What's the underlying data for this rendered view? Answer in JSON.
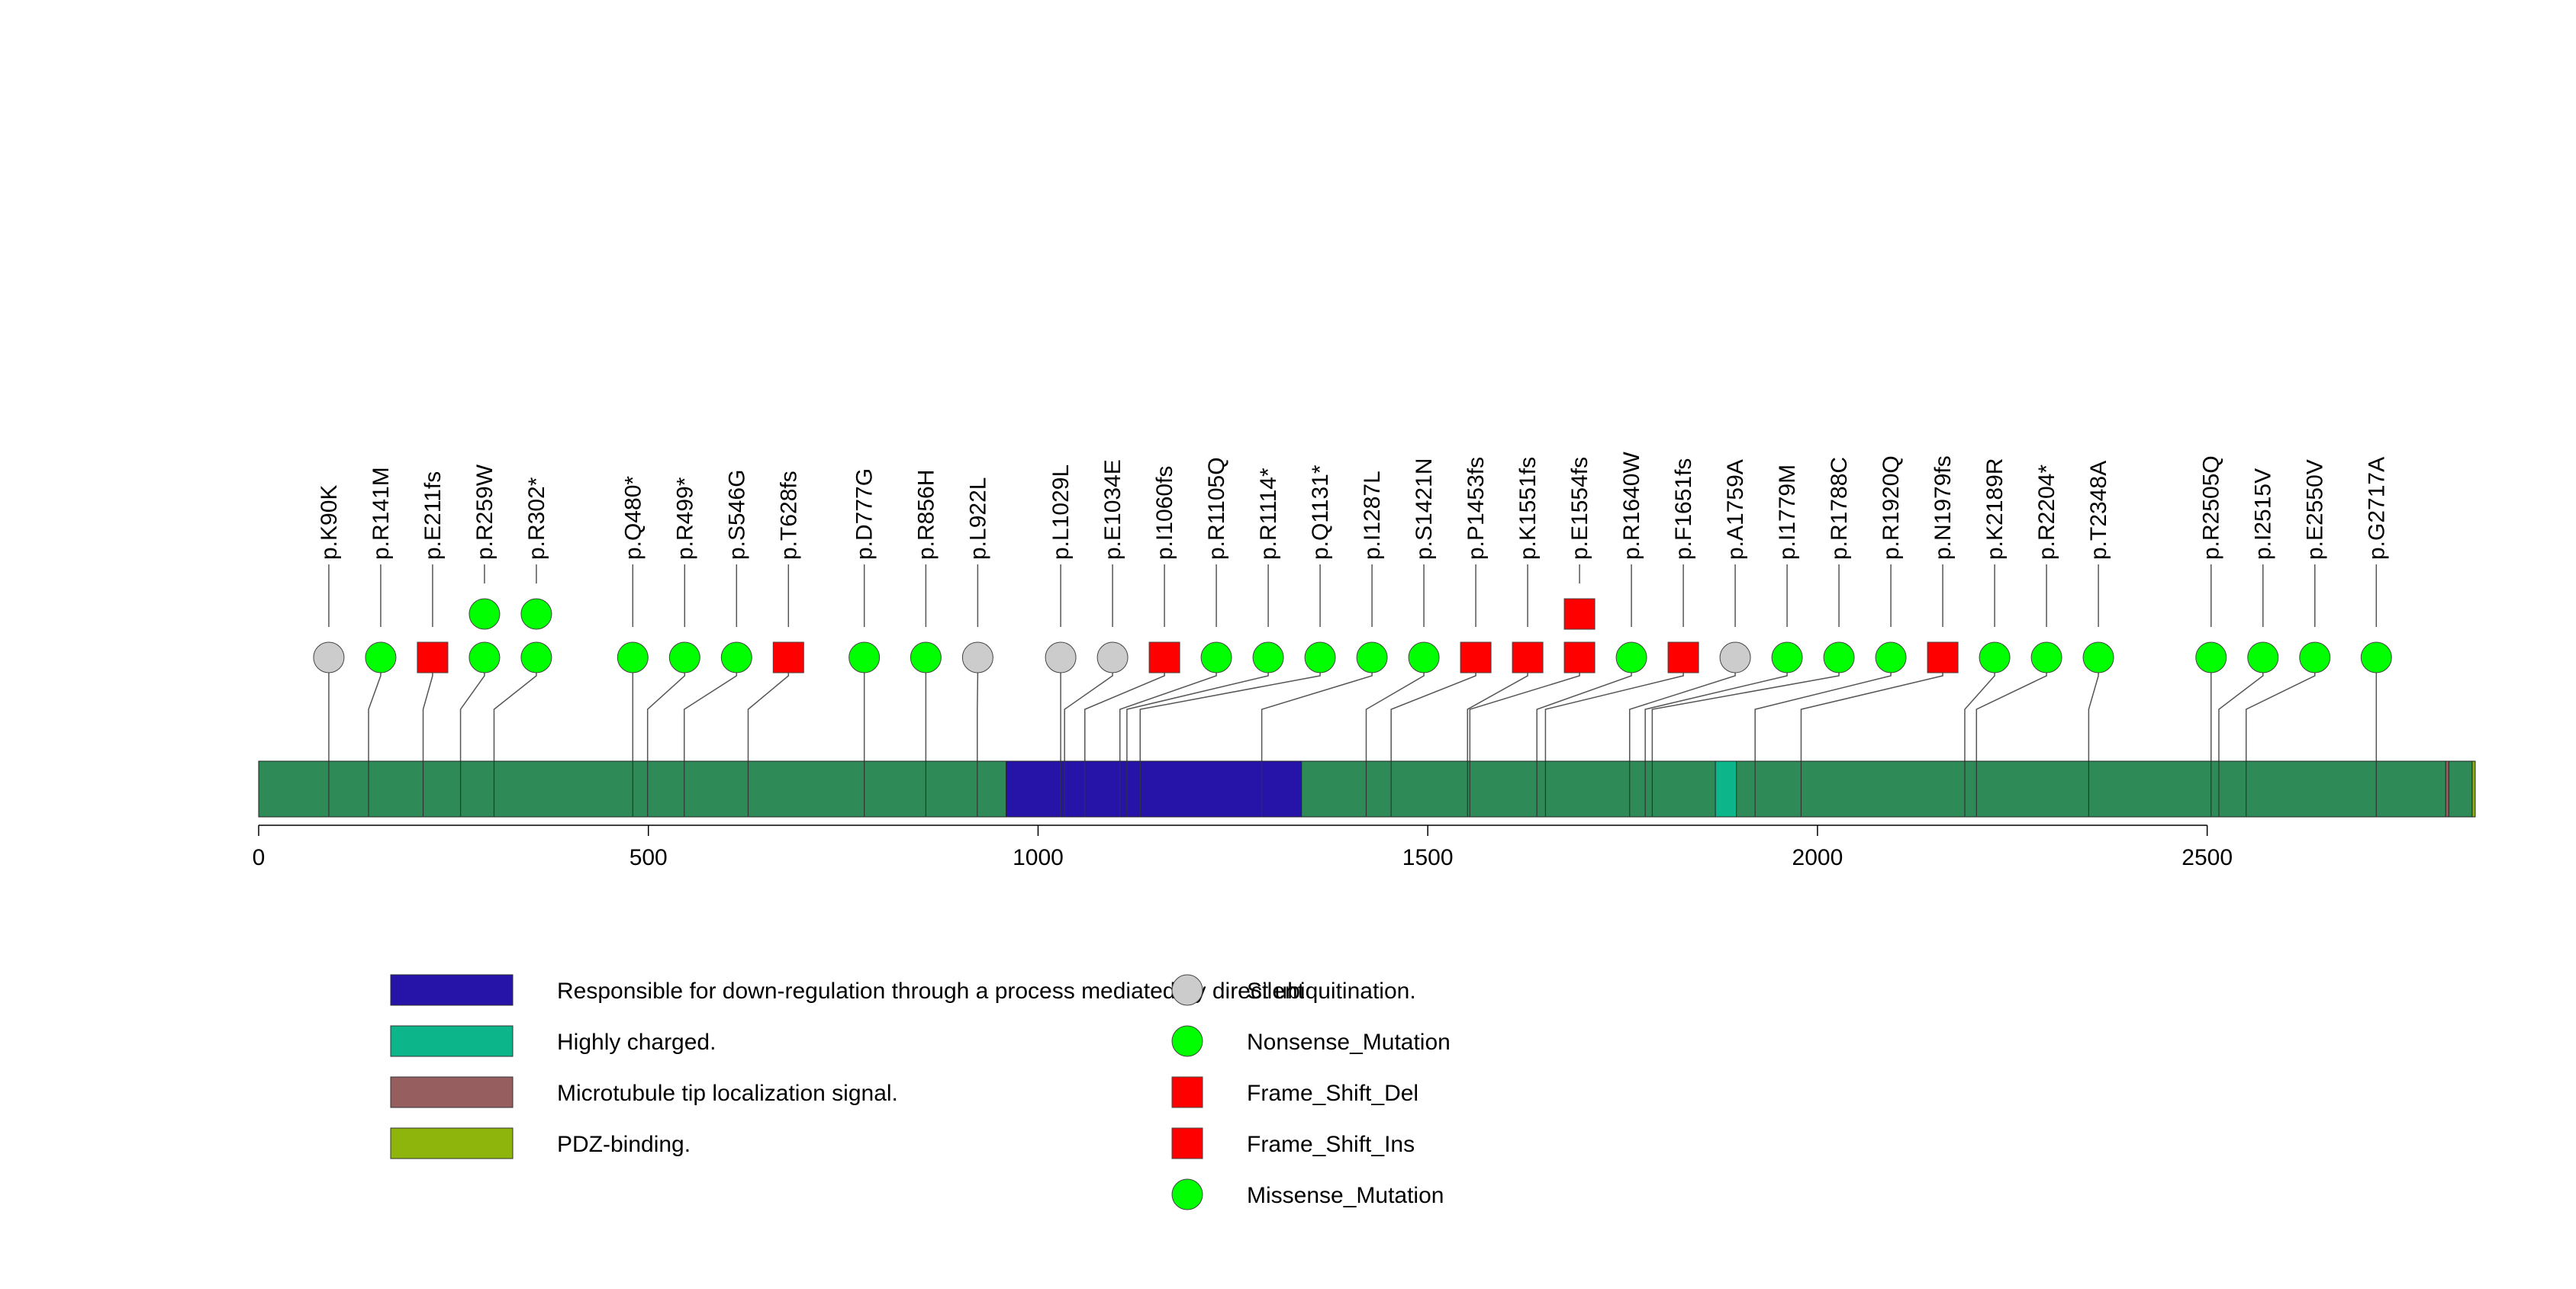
{
  "chart_data": {
    "type": "lollipop",
    "xlim": [
      0,
      2843
    ],
    "xticks": [
      0,
      500,
      1000,
      1500,
      2000,
      2500
    ],
    "protein_color": "#2e8b57",
    "domains": [
      {
        "name": "Responsible for down-regulation through a process mediated by direct ubiquitination.",
        "start": 959,
        "end": 1338,
        "color": "#2613a8"
      },
      {
        "name": "Highly charged.",
        "start": 1869,
        "end": 1896,
        "color": "#0db58b"
      },
      {
        "name": "Microtubule tip localization signal.",
        "start": 2806,
        "end": 2809,
        "color": "#975e5f"
      },
      {
        "name": "PDZ-binding.",
        "start": 2840,
        "end": 2843,
        "color": "#8db50b"
      }
    ],
    "mutation_types": [
      {
        "name": "Silent",
        "shape": "circle",
        "color": "#cccccc"
      },
      {
        "name": "Nonsense_Mutation",
        "shape": "circle",
        "color": "#00ff00"
      },
      {
        "name": "Frame_Shift_Del",
        "shape": "square",
        "color": "#ff0000"
      },
      {
        "name": "Frame_Shift_Ins",
        "shape": "square",
        "color": "#ff0000"
      },
      {
        "name": "Missense_Mutation",
        "shape": "circle",
        "color": "#00ff00"
      }
    ],
    "mutations": [
      {
        "label": "p.K90K",
        "label_plain": "p.K90K",
        "pos": 90,
        "type": "Silent",
        "count": 1
      },
      {
        "label": "p.R141M",
        "label_plain": "p.R141M",
        "pos": 141,
        "type": "Missense_Mutation",
        "count": 1
      },
      {
        "label": "p.E211fs",
        "label_plain": "p.E211fs",
        "pos": 211,
        "type": "Frame_Shift_Del",
        "count": 1
      },
      {
        "label": "p.R259W",
        "label_plain": "p.R259W",
        "pos": 259,
        "type": "Missense_Mutation",
        "count": 2
      },
      {
        "label": "p.R302*",
        "label_plain": "p.R302",
        "pos": 302,
        "type": "Nonsense_Mutation",
        "count": 2
      },
      {
        "label": "p.Q480*",
        "label_plain": "p.Q480",
        "pos": 480,
        "type": "Nonsense_Mutation",
        "count": 1
      },
      {
        "label": "p.R499*",
        "label_plain": "p.R499",
        "pos": 499,
        "type": "Nonsense_Mutation",
        "count": 1
      },
      {
        "label": "p.S546G",
        "label_plain": "p.S546G",
        "pos": 546,
        "type": "Missense_Mutation",
        "count": 1
      },
      {
        "label": "p.T628fs",
        "label_plain": "p.T628fs",
        "pos": 628,
        "type": "Frame_Shift_Del",
        "count": 1
      },
      {
        "label": "p.D777G",
        "label_plain": "p.D777G",
        "pos": 777,
        "type": "Missense_Mutation",
        "count": 1
      },
      {
        "label": "p.R856H",
        "label_plain": "p.R856H",
        "pos": 856,
        "type": "Missense_Mutation",
        "count": 1
      },
      {
        "label": "p.L922L",
        "label_plain": "p.L922L",
        "pos": 922,
        "type": "Silent",
        "count": 1
      },
      {
        "label": "p.L1029L",
        "label_plain": "p.L1029L",
        "pos": 1029,
        "type": "Silent",
        "count": 1
      },
      {
        "label": "p.E1034E",
        "label_plain": "p.E1034E",
        "pos": 1034,
        "type": "Silent",
        "count": 1
      },
      {
        "label": "p.I1060fs",
        "label_plain": "p.I1060fs",
        "pos": 1060,
        "type": "Frame_Shift_Del",
        "count": 1
      },
      {
        "label": "p.R1105Q",
        "label_plain": "p.R1105Q",
        "pos": 1105,
        "type": "Missense_Mutation",
        "count": 1
      },
      {
        "label": "p.R1114*",
        "label_plain": "p.R1114",
        "pos": 1114,
        "type": "Nonsense_Mutation",
        "count": 1
      },
      {
        "label": "p.Q1131*",
        "label_plain": "p.Q1131",
        "pos": 1131,
        "type": "Nonsense_Mutation",
        "count": 1
      },
      {
        "label": "p.I1287L",
        "label_plain": "p.I1287L",
        "pos": 1287,
        "type": "Missense_Mutation",
        "count": 1
      },
      {
        "label": "p.S1421N",
        "label_plain": "p.S1421N",
        "pos": 1421,
        "type": "Missense_Mutation",
        "count": 1
      },
      {
        "label": "p.P1453fs",
        "label_plain": "p.P1453fs",
        "pos": 1453,
        "type": "Frame_Shift_Del",
        "count": 1
      },
      {
        "label": "p.K1551fs",
        "label_plain": "p.K1551fs",
        "pos": 1551,
        "type": "Frame_Shift_Del",
        "count": 1
      },
      {
        "label": "p.E1554fs",
        "label_plain": "p.E1554fs",
        "pos": 1554,
        "type": "Frame_Shift_Del",
        "count": 2
      },
      {
        "label": "p.R1640W",
        "label_plain": "p.R1640W",
        "pos": 1640,
        "type": "Missense_Mutation",
        "count": 1
      },
      {
        "label": "p.F1651fs",
        "label_plain": "p.F1651fs",
        "pos": 1651,
        "type": "Frame_Shift_Del",
        "count": 1
      },
      {
        "label": "p.A1759A",
        "label_plain": "p.A1759A",
        "pos": 1759,
        "type": "Silent",
        "count": 1
      },
      {
        "label": "p.I1779M",
        "label_plain": "p.I1779M",
        "pos": 1779,
        "type": "Missense_Mutation",
        "count": 1
      },
      {
        "label": "p.R1788C",
        "label_plain": "p.R1788C",
        "pos": 1788,
        "type": "Missense_Mutation",
        "count": 1
      },
      {
        "label": "p.R1920Q",
        "label_plain": "p.R1920Q",
        "pos": 1920,
        "type": "Missense_Mutation",
        "count": 1
      },
      {
        "label": "p.N1979fs",
        "label_plain": "p.N1979fs",
        "pos": 1979,
        "type": "Frame_Shift_Del",
        "count": 1
      },
      {
        "label": "p.K2189R",
        "label_plain": "p.K2189R",
        "pos": 2189,
        "type": "Missense_Mutation",
        "count": 1
      },
      {
        "label": "p.R2204*",
        "label_plain": "p.R2204",
        "pos": 2204,
        "type": "Nonsense_Mutation",
        "count": 1
      },
      {
        "label": "p.T2348A",
        "label_plain": "p.T2348A",
        "pos": 2348,
        "type": "Missense_Mutation",
        "count": 1
      },
      {
        "label": "p.R2505Q",
        "label_plain": "p.R2505Q",
        "pos": 2505,
        "type": "Missense_Mutation",
        "count": 1
      },
      {
        "label": "p.I2515V",
        "label_plain": "p.I2515V",
        "pos": 2515,
        "type": "Missense_Mutation",
        "count": 1
      },
      {
        "label": "p.E2550V",
        "label_plain": "p.E2550V",
        "pos": 2550,
        "type": "Missense_Mutation",
        "count": 1
      },
      {
        "label": "p.G2717A",
        "label_plain": "p.G2717A",
        "pos": 2717,
        "type": "Missense_Mutation",
        "count": 1
      }
    ]
  }
}
